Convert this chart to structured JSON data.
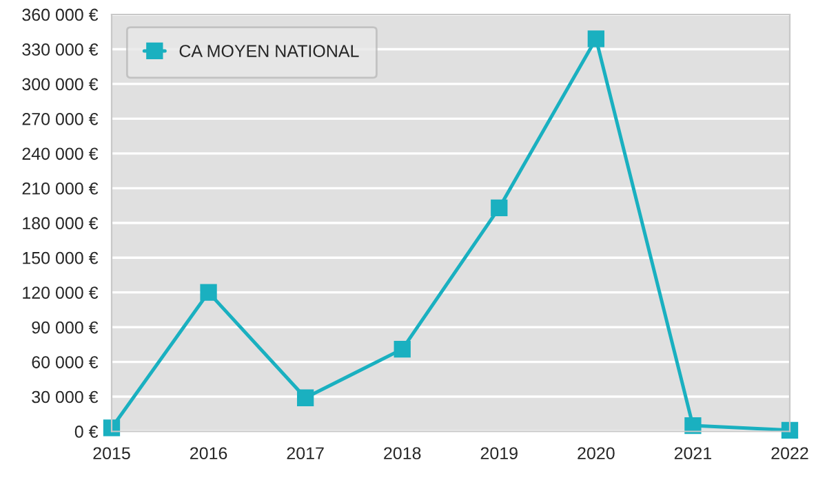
{
  "chart_data": {
    "type": "line",
    "categories": [
      "2015",
      "2016",
      "2017",
      "2018",
      "2019",
      "2020",
      "2021",
      "2022"
    ],
    "series": [
      {
        "name": "CA MOYEN NATIONAL",
        "color": "#1ab0c0",
        "values": [
          3000,
          120000,
          29000,
          71000,
          193000,
          339000,
          5000,
          1000
        ]
      }
    ],
    "ylim": [
      0,
      360000
    ],
    "yticks": [
      {
        "value": 0,
        "label": "0 €"
      },
      {
        "value": 30000,
        "label": "30 000 €"
      },
      {
        "value": 60000,
        "label": "60 000 €"
      },
      {
        "value": 90000,
        "label": "90 000 €"
      },
      {
        "value": 120000,
        "label": "120 000 €"
      },
      {
        "value": 150000,
        "label": "150 000 €"
      },
      {
        "value": 180000,
        "label": "180 000 €"
      },
      {
        "value": 210000,
        "label": "210 000 €"
      },
      {
        "value": 240000,
        "label": "240 000 €"
      },
      {
        "value": 270000,
        "label": "270 000 €"
      },
      {
        "value": 300000,
        "label": "300 000 €"
      },
      {
        "value": 330000,
        "label": "330 000 €"
      },
      {
        "value": 360000,
        "label": "360 000 €"
      }
    ],
    "grid": "y",
    "legend": "top left",
    "marker": "square",
    "line_style": "solid"
  }
}
